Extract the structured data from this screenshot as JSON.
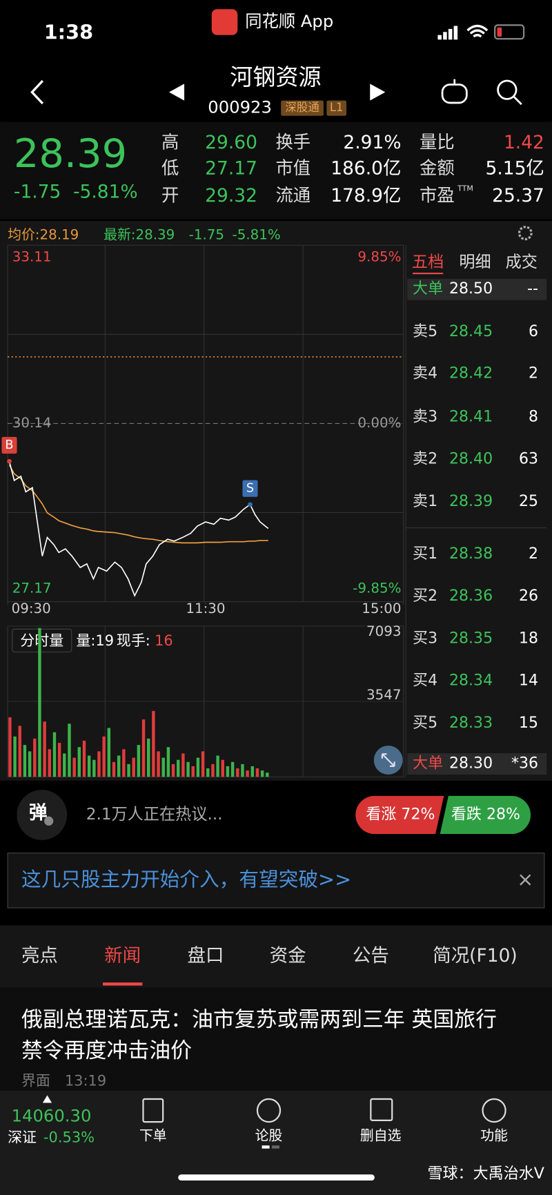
{
  "status_bar": {
    "time": "1:38",
    "app": "同花顺 App"
  },
  "header": {
    "name": "河钢资源",
    "code": "000923",
    "tags": [
      "深股通",
      "L1"
    ]
  },
  "quote": {
    "price": "28.39",
    "change": "-1.75",
    "change_pct": "-5.81%",
    "stats": [
      {
        "label": "高",
        "value": "29.60",
        "color": "#3cc35a"
      },
      {
        "label": "换手",
        "value": "2.91%",
        "color": "#ffffff"
      },
      {
        "label": "量比",
        "value": "1.42",
        "color": "#f04848"
      },
      {
        "label": "低",
        "value": "27.17",
        "color": "#3cc35a"
      },
      {
        "label": "市值",
        "value": "186.0亿",
        "color": "#ffffff"
      },
      {
        "label": "金额",
        "value": "5.15亿",
        "color": "#ffffff"
      },
      {
        "label": "开",
        "value": "29.32",
        "color": "#3cc35a"
      },
      {
        "label": "流通",
        "value": "178.9亿",
        "color": "#ffffff"
      },
      {
        "label": "市盈",
        "sup": "TTM",
        "value": "25.37",
        "color": "#ffffff"
      }
    ]
  },
  "chart_data": [
    {
      "type": "line",
      "avg_label": "均价:28.19",
      "latest_label": "最新:28.39",
      "latest_change": "-1.75",
      "latest_pct": "-5.81%",
      "x": [
        1,
        4,
        8,
        11,
        15,
        17,
        21,
        24,
        28,
        31,
        35,
        39,
        44,
        48,
        52,
        55,
        60,
        65,
        69,
        73,
        77,
        81,
        84,
        88,
        92,
        97,
        101,
        106,
        111,
        115,
        120,
        125,
        129,
        134,
        138,
        143,
        147,
        150,
        153,
        158
      ],
      "xlim": [
        0,
        240
      ],
      "xticks": [
        {
          "value": 0,
          "label": "09:30"
        },
        {
          "value": 120,
          "label": "11:30"
        },
        {
          "value": 240,
          "label": "15:00"
        }
      ],
      "ylim": [
        27.17,
        33.11
      ],
      "yticks": [
        33.11,
        30.14,
        27.17
      ],
      "y2lim": [
        -9.85,
        9.85
      ],
      "y2ticks": [
        {
          "value": 9.85,
          "label": "9.85%"
        },
        {
          "value": 0,
          "label": "0.00%"
        },
        {
          "value": -9.85,
          "label": "-9.85%"
        }
      ],
      "price": {
        "color": "#ffffff",
        "values": [
          29.51,
          29.19,
          29.26,
          29.0,
          29.07,
          28.69,
          27.93,
          28.24,
          28.12,
          27.99,
          28.05,
          27.93,
          27.74,
          27.8,
          27.55,
          27.74,
          27.68,
          27.83,
          27.74,
          27.55,
          27.27,
          27.49,
          27.8,
          27.93,
          28.12,
          28.21,
          28.18,
          28.24,
          28.31,
          28.43,
          28.5,
          28.46,
          28.56,
          28.53,
          28.58,
          28.71,
          28.79,
          28.62,
          28.5,
          28.39
        ]
      },
      "average": {
        "color": "#f0a040",
        "values": [
          29.45,
          29.3,
          29.22,
          29.1,
          29.02,
          28.95,
          28.8,
          28.65,
          28.58,
          28.52,
          28.48,
          28.44,
          28.4,
          28.38,
          28.35,
          28.34,
          28.33,
          28.32,
          28.3,
          28.28,
          28.25,
          28.23,
          28.22,
          28.21,
          28.19,
          28.17,
          28.16,
          28.15,
          28.15,
          28.15,
          28.16,
          28.16,
          28.16,
          28.17,
          28.17,
          28.17,
          28.18,
          28.18,
          28.19,
          28.19
        ]
      },
      "reference_line": {
        "value": 31.25,
        "color": "#e8893c"
      },
      "annotations": [
        {
          "label": "B",
          "x": 1,
          "y": 29.51,
          "color": "#d9413a"
        },
        {
          "label": "S",
          "x": 147,
          "y": 28.79,
          "color": "#3a6fb0"
        }
      ]
    },
    {
      "type": "bar",
      "title": "分时量",
      "volume_label": "量:19",
      "current_label": "现手:",
      "current_value": "16",
      "x": [
        0,
        3,
        6,
        9,
        12,
        15,
        18,
        21,
        24,
        27,
        30,
        33,
        36,
        39,
        42,
        45,
        48,
        51,
        54,
        57,
        60,
        63,
        66,
        69,
        72,
        75,
        78,
        81,
        84,
        87,
        90,
        93,
        96,
        99,
        102,
        105,
        108,
        111,
        114,
        117,
        120,
        123,
        126,
        129,
        132,
        135,
        138,
        141,
        144,
        147,
        150,
        153,
        156
      ],
      "xlim": [
        0,
        240
      ],
      "values": [
        2800,
        1900,
        2400,
        1500,
        1200,
        1800,
        7000,
        2600,
        1300,
        2100,
        1600,
        1100,
        2500,
        900,
        1400,
        1700,
        1000,
        800,
        1200,
        1900,
        2300,
        700,
        1000,
        1300,
        600,
        900,
        1500,
        2700,
        1800,
        3100,
        1200,
        900,
        1400,
        600,
        800,
        1100,
        700,
        500,
        900,
        1200,
        400,
        600,
        1000,
        800,
        500,
        700,
        400,
        600,
        300,
        500,
        400,
        300,
        200
      ],
      "colors": [
        "#e03c3c",
        "#3cb44b",
        "#e03c3c",
        "#3cb44b",
        "#3cb44b",
        "#e03c3c",
        "#3cb44b",
        "#e03c3c",
        "#e03c3c",
        "#3cb44b",
        "#e03c3c",
        "#3cb44b",
        "#3cb44b",
        "#e03c3c",
        "#3cb44b",
        "#e03c3c",
        "#3cb44b",
        "#3cb44b",
        "#e03c3c",
        "#e03c3c",
        "#3cb44b",
        "#e03c3c",
        "#3cb44b",
        "#e03c3c",
        "#3cb44b",
        "#e03c3c",
        "#3cb44b",
        "#e03c3c",
        "#3cb44b",
        "#e03c3c",
        "#e03c3c",
        "#3cb44b",
        "#3cb44b",
        "#e03c3c",
        "#3cb44b",
        "#e03c3c",
        "#3cb44b",
        "#e03c3c",
        "#3cb44b",
        "#e03c3c",
        "#3cb44b",
        "#e03c3c",
        "#3cb44b",
        "#e03c3c",
        "#3cb44b",
        "#3cb44b",
        "#e03c3c",
        "#3cb44b",
        "#e03c3c",
        "#3cb44b",
        "#e03c3c",
        "#3cb44b",
        "#3cb44b"
      ],
      "ylim": [
        0,
        7093
      ],
      "yticks": [
        3547,
        7093
      ]
    }
  ],
  "order_book": {
    "tabs": [
      "五档",
      "明细",
      "成交"
    ],
    "big_top": {
      "label": "大单",
      "price": "28.50",
      "volume": "--"
    },
    "asks": [
      {
        "label": "卖5",
        "price": "28.45",
        "volume": "6"
      },
      {
        "label": "卖4",
        "price": "28.42",
        "volume": "2"
      },
      {
        "label": "卖3",
        "price": "28.41",
        "volume": "8"
      },
      {
        "label": "卖2",
        "price": "28.40",
        "volume": "63"
      },
      {
        "label": "卖1",
        "price": "28.39",
        "volume": "25"
      }
    ],
    "bids": [
      {
        "label": "买1",
        "price": "28.38",
        "volume": "2"
      },
      {
        "label": "买2",
        "price": "28.36",
        "volume": "26"
      },
      {
        "label": "买3",
        "price": "28.35",
        "volume": "18"
      },
      {
        "label": "买4",
        "price": "28.34",
        "volume": "14"
      },
      {
        "label": "买5",
        "price": "28.33",
        "volume": "15"
      }
    ],
    "big_bottom": {
      "label": "大单",
      "price": "28.30",
      "volume": "*36"
    }
  },
  "discussion": {
    "badge": "弹",
    "text": "2.1万人正在热议...",
    "bull": "看涨 72%",
    "bear": "看跌 28%"
  },
  "banner": {
    "text": "这几只股主力开始介入，有望突破>>",
    "close": "×"
  },
  "news_tabs": {
    "items": [
      "亮点",
      "新闻",
      "盘口",
      "资金",
      "公告",
      "简况(F10)"
    ],
    "active": 1
  },
  "news": {
    "headline_lines": [
      "俄副总理诺瓦克：油市复苏或需两到三年 英国旅行",
      "禁令再度冲击油价"
    ],
    "source": "界面",
    "time": "13:19"
  },
  "index_bar": {
    "value": "14060.30",
    "name": "深证",
    "change": "-0.53%"
  },
  "nav": [
    "下单",
    "论股",
    "删自选",
    "功能"
  ],
  "watermark": "雪球：大禹治水V"
}
